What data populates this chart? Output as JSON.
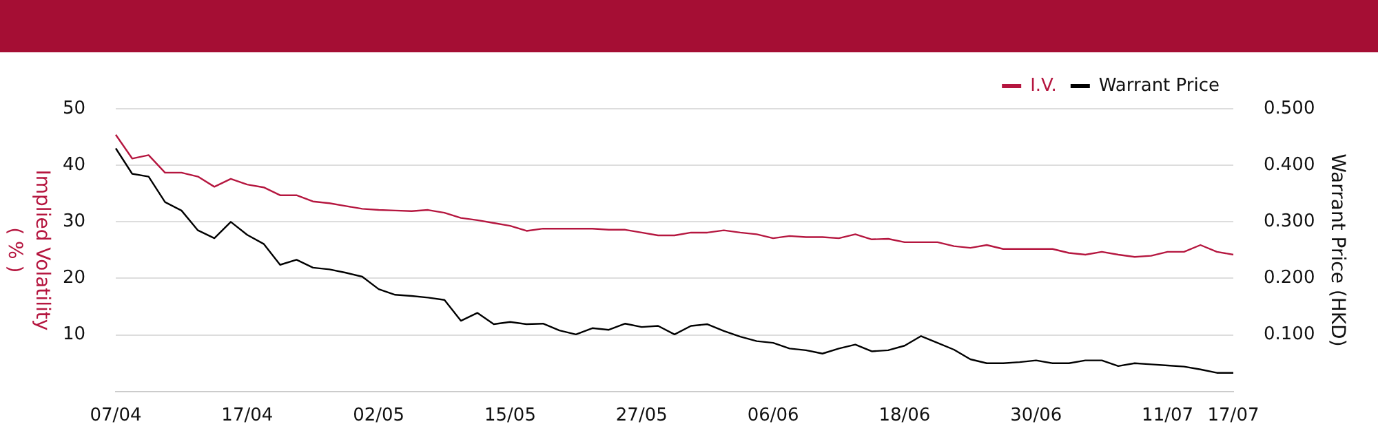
{
  "chart_data": {
    "type": "line",
    "categories": [
      "07/04",
      null,
      null,
      null,
      null,
      null,
      null,
      null,
      "17/04",
      null,
      null,
      null,
      null,
      null,
      null,
      null,
      "02/05",
      null,
      null,
      null,
      null,
      null,
      null,
      null,
      "15/05",
      null,
      null,
      null,
      null,
      null,
      null,
      null,
      "27/05",
      null,
      null,
      null,
      null,
      null,
      null,
      null,
      "06/06",
      null,
      null,
      null,
      null,
      null,
      null,
      null,
      "18/06",
      null,
      null,
      null,
      null,
      null,
      null,
      null,
      "30/06",
      null,
      null,
      null,
      null,
      null,
      null,
      null,
      "11/07",
      null,
      null,
      null,
      "17/07"
    ],
    "ylabel": "Implied Volatility\n( % )",
    "y2label": "Warrant Price (HKD)",
    "series": [
      {
        "name": "I.V.",
        "color": "#b5163f",
        "values": [
          45.4,
          41.2,
          41.8,
          38.7,
          38.7,
          38.0,
          36.2,
          37.6,
          36.6,
          36.1,
          34.7,
          34.7,
          33.6,
          33.3,
          32.8,
          32.3,
          32.1,
          32.0,
          31.9,
          32.1,
          31.6,
          30.7,
          30.3,
          29.8,
          29.3,
          28.4,
          28.8,
          28.8,
          28.8,
          28.8,
          28.6,
          28.6,
          28.1,
          27.6,
          27.6,
          28.1,
          28.1,
          28.5,
          28.1,
          27.8,
          27.1,
          27.5,
          27.3,
          27.3,
          27.1,
          27.8,
          26.9,
          27.0,
          26.4,
          26.4,
          26.4,
          25.7,
          25.4,
          25.9,
          25.2,
          25.2,
          25.2,
          25.2,
          24.5,
          24.2,
          24.7,
          24.2,
          23.8,
          24.0,
          24.7,
          24.7,
          25.9,
          24.7,
          24.2
        ]
      },
      {
        "name": "Warrant Price",
        "color": "#000000",
        "axis": "y2",
        "values": [
          0.43,
          0.385,
          0.38,
          0.335,
          0.32,
          0.285,
          0.271,
          0.3,
          0.277,
          0.261,
          0.224,
          0.233,
          0.219,
          0.216,
          0.21,
          0.203,
          0.181,
          0.171,
          0.169,
          0.166,
          0.162,
          0.125,
          0.139,
          0.119,
          0.123,
          0.119,
          0.12,
          0.108,
          0.101,
          0.112,
          0.109,
          0.12,
          0.114,
          0.116,
          0.101,
          0.116,
          0.119,
          0.107,
          0.097,
          0.089,
          0.086,
          0.076,
          0.073,
          0.067,
          0.076,
          0.083,
          0.071,
          0.073,
          0.081,
          0.098,
          0.086,
          0.074,
          0.057,
          0.05,
          0.05,
          0.052,
          0.055,
          0.05,
          0.05,
          0.055,
          0.055,
          0.045,
          0.05,
          0.048,
          0.046,
          0.044,
          0.039,
          0.033,
          0.033
        ]
      }
    ],
    "ylim": [
      0,
      50
    ],
    "yticks": [
      {
        "value": 0,
        "label": null
      },
      10,
      20,
      30,
      40,
      50
    ],
    "y2lim": [
      0,
      0.5
    ],
    "y2ticks": [
      {
        "value": 0,
        "label": null
      },
      {
        "value": 0.1,
        "label": "0.100"
      },
      {
        "value": 0.2,
        "label": "0.200"
      },
      {
        "value": 0.3,
        "label": "0.300"
      },
      {
        "value": 0.4,
        "label": "0.400"
      },
      {
        "value": 0.5,
        "label": "0.500"
      }
    ],
    "grid": "y",
    "legend": "top right",
    "marker": "none",
    "line_style": "solid"
  }
}
